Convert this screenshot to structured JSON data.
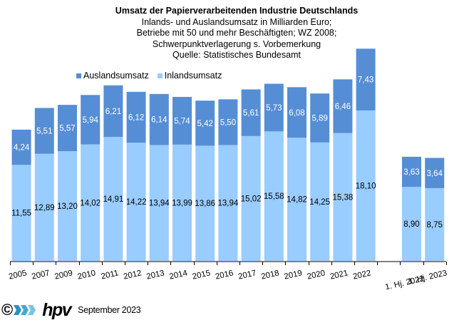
{
  "chart_data": {
    "type": "bar",
    "stacked": true,
    "title": "Umsatz der Papierverarbeitenden Industrie Deutschlands",
    "subtitle_lines": [
      "Inlands- und Auslandsumsatz in Milliarden Euro;",
      "Betriebe mit 50 und mehr Beschäftigten;  WZ 2008;",
      "Schwerpunktverlagerung  s. Vorbemerkung",
      "Quelle:  Statistisches Bundesamt"
    ],
    "xlabel": "",
    "ylabel": "",
    "ylim": [
      0,
      26
    ],
    "grid": false,
    "legend_position": "top-left",
    "categories": [
      "2005",
      "2007",
      "2009",
      "2010",
      "2011",
      "2012",
      "2013",
      "2014",
      "2015",
      "2016",
      "2017",
      "2018",
      "2019",
      "2020",
      "2021",
      "2022",
      "",
      "1. Hj. 2022",
      "1. Hj. 2023"
    ],
    "series": [
      {
        "name": "Inlandsumsatz",
        "color": "#99ccff",
        "values": [
          11.55,
          12.89,
          13.2,
          14.02,
          14.91,
          14.22,
          13.94,
          13.99,
          13.86,
          13.94,
          15.02,
          15.58,
          14.82,
          14.25,
          15.38,
          18.1,
          null,
          8.9,
          8.75
        ],
        "labels": [
          "11,55",
          "12,89",
          "13,20",
          "14,02",
          "14,91",
          "14,22",
          "13,94",
          "13,99",
          "13,86",
          "13,94",
          "15,02",
          "15,58",
          "14,82",
          "14,25",
          "15,38",
          "18,10",
          "",
          "8,90",
          "8,75"
        ],
        "label_color": "#000000"
      },
      {
        "name": "Auslandsumsatz",
        "color": "#558ed5",
        "values": [
          4.24,
          5.51,
          5.57,
          5.94,
          6.21,
          6.12,
          6.14,
          5.74,
          5.42,
          5.5,
          5.61,
          5.73,
          6.08,
          5.89,
          6.46,
          7.43,
          null,
          3.63,
          3.64
        ],
        "labels": [
          "4,24",
          "5,51",
          "5,57",
          "5,94",
          "6,21",
          "6,12",
          "6,14",
          "5,74",
          "5,42",
          "5,50",
          "5,61",
          "5,73",
          "6,08",
          "5,89",
          "6,46",
          "7,43",
          "",
          "3,63",
          "3,64"
        ],
        "label_color": "#ffffff"
      }
    ]
  },
  "legend": {
    "items": [
      {
        "label": "Auslandsumsatz",
        "color": "#558ed5"
      },
      {
        "label": "Inlandsumsatz",
        "color": "#99ccff"
      }
    ]
  },
  "footer": {
    "copyright": "©",
    "logo_text": "hpv",
    "date": "September 2023"
  }
}
